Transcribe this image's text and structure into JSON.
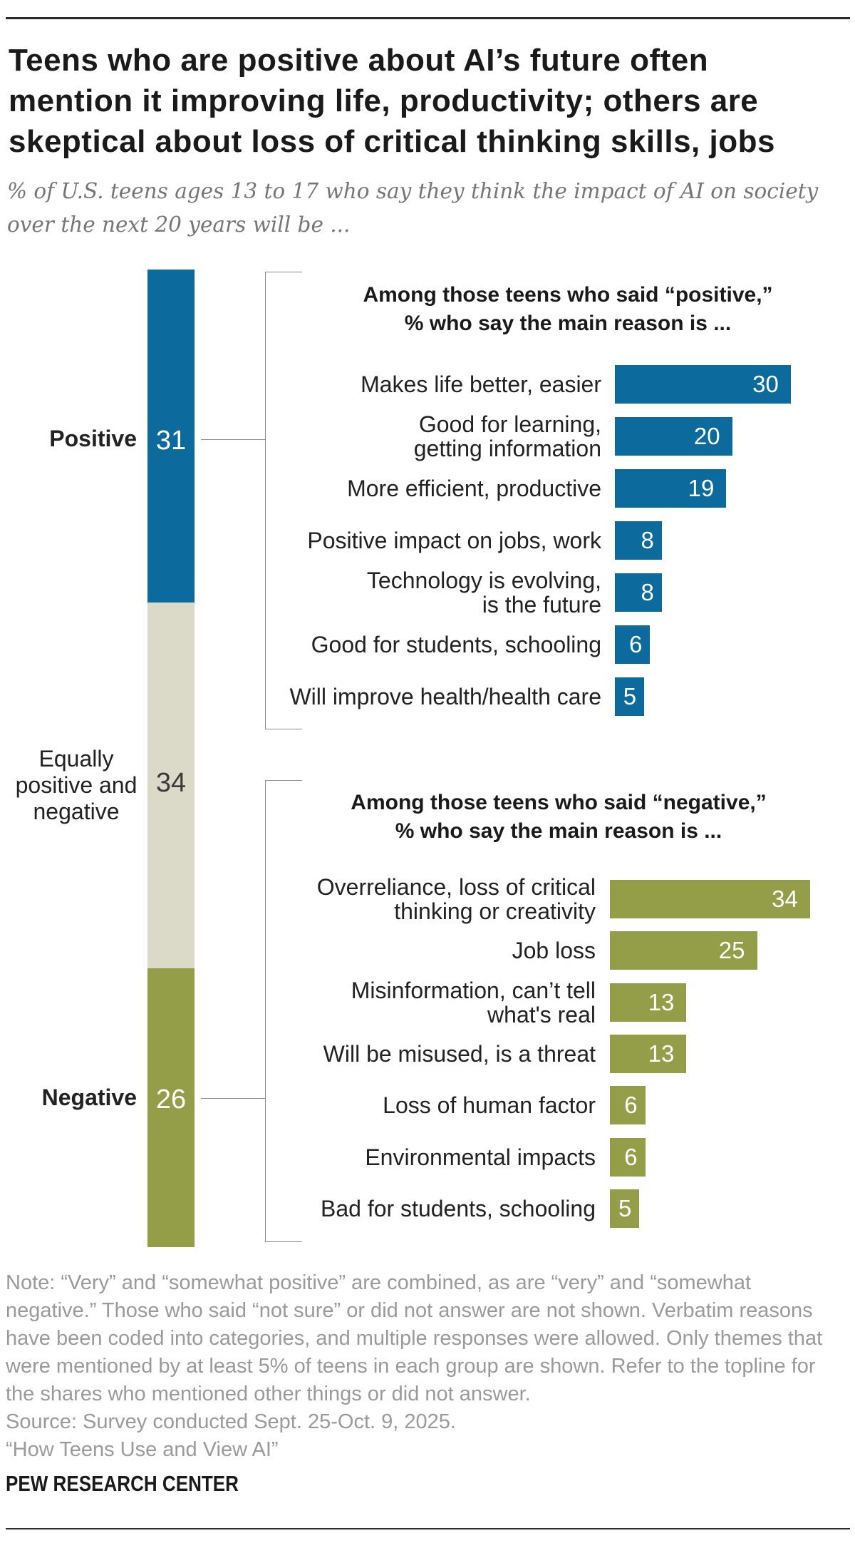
{
  "header": {
    "title": "Teens who are positive about AI’s future often mention it improving life, productivity; others are skeptical about loss of critical thinking skills, jobs",
    "title_lines": [
      "Teens who are positive about AI’s future often",
      "mention it improving life, productivity; others are",
      "skeptical about loss of critical thinking skills, jobs"
    ],
    "subtitle": "% of U.S. teens ages 13 to 17 who say they think the impact of AI on society over the next 20 years will be ...",
    "subtitle_lines": [
      "% of U.S. teens ages 13 to 17 who say they think the impact of AI on society",
      "over the next 20 years will be ..."
    ]
  },
  "colors": {
    "positive_blue": "#0C6B9C",
    "negative_olive": "#949D48",
    "neutral_beige": "#DBD9C7",
    "white_value": "#FFFFFF",
    "dark_value": "#3A3A3A",
    "text_dark": "#222222",
    "note_gray": "#9A9A9A",
    "line_gray": "#8C8C8C"
  },
  "chart_data": [
    {
      "id": "impact-stacked-bar",
      "type": "stacked_bar",
      "orientation": "vertical",
      "units": "percent",
      "segments": [
        {
          "label": "Positive",
          "label_lines": [
            "Positive"
          ],
          "value": 31,
          "fill": "#0C6B9C",
          "value_color": "#FFFFFF",
          "bold_label": true
        },
        {
          "label": "Equally positive and negative",
          "label_lines": [
            "Equally",
            "positive and",
            "negative"
          ],
          "value": 34,
          "fill": "#DBD9C7",
          "value_color": "#3A3A3A",
          "bold_label": false
        },
        {
          "label": "Negative",
          "label_lines": [
            "Negative"
          ],
          "value": 26,
          "fill": "#949D48",
          "value_color": "#FFFFFF",
          "bold_label": true
        }
      ]
    },
    {
      "id": "positive-reasons",
      "type": "bar",
      "title": "Among those teens who said “positive,” % who say the main reason is ...",
      "title_lines": [
        "Among those teens who said “positive,”",
        "% who say the main reason is ..."
      ],
      "bar_color": "#0C6B9C",
      "value_color": "#FFFFFF",
      "xlim": [
        0,
        34
      ],
      "rows": [
        {
          "label": "Makes life better, easier",
          "label_lines": [
            "Makes life better, easier"
          ],
          "value": 30
        },
        {
          "label": "Good for learning, getting information",
          "label_lines": [
            "Good for learning,",
            "getting information"
          ],
          "value": 20
        },
        {
          "label": "More efficient, productive",
          "label_lines": [
            "More efficient, productive"
          ],
          "value": 19
        },
        {
          "label": "Positive impact on jobs, work",
          "label_lines": [
            "Positive impact on jobs, work"
          ],
          "value": 8
        },
        {
          "label": "Technology is evolving, is the future",
          "label_lines": [
            "Technology is evolving,",
            "is the future"
          ],
          "value": 8
        },
        {
          "label": "Good for students, schooling",
          "label_lines": [
            "Good for students, schooling"
          ],
          "value": 6
        },
        {
          "label": "Will improve health/health care",
          "label_lines": [
            "Will improve health/health care"
          ],
          "value": 5
        }
      ]
    },
    {
      "id": "negative-reasons",
      "type": "bar",
      "title": "Among those teens who said “negative,” % who say the main reason is ...",
      "title_lines": [
        "Among those teens who said “negative,”",
        "% who say the main reason is ..."
      ],
      "bar_color": "#949D48",
      "value_color": "#FFFFFF",
      "xlim": [
        0,
        34
      ],
      "rows": [
        {
          "label": "Overreliance, loss of critical thinking or creativity",
          "label_lines": [
            "Overreliance, loss of critical",
            "thinking or creativity"
          ],
          "value": 34
        },
        {
          "label": "Job loss",
          "label_lines": [
            "Job loss"
          ],
          "value": 25
        },
        {
          "label": "Misinformation, can’t tell what's real",
          "label_lines": [
            "Misinformation, can’t tell",
            "what's real"
          ],
          "value": 13
        },
        {
          "label": "Will be misused, is a threat",
          "label_lines": [
            "Will be misused, is a threat"
          ],
          "value": 13
        },
        {
          "label": "Loss of human factor",
          "label_lines": [
            "Loss of human factor"
          ],
          "value": 6
        },
        {
          "label": "Environmental impacts",
          "label_lines": [
            "Environmental impacts"
          ],
          "value": 6
        },
        {
          "label": "Bad for students, schooling",
          "label_lines": [
            "Bad for students, schooling"
          ],
          "value": 5
        }
      ]
    }
  ],
  "footer": {
    "note_lines": [
      "Note: “Very” and “somewhat positive” are combined, as are “very” and “somewhat",
      "negative.” Those who said “not sure” or did not answer are not shown. Verbatim reasons",
      "have been coded into categories, and multiple responses were allowed. Only themes that",
      "were mentioned by at least 5% of teens in each group are shown. Refer to the topline for",
      "the shares who mentioned other things or did not answer."
    ],
    "source": "Source: Survey conducted Sept. 25-Oct. 9, 2025.",
    "tagline": "“How Teens Use and View AI”",
    "brand": "PEW RESEARCH CENTER"
  }
}
